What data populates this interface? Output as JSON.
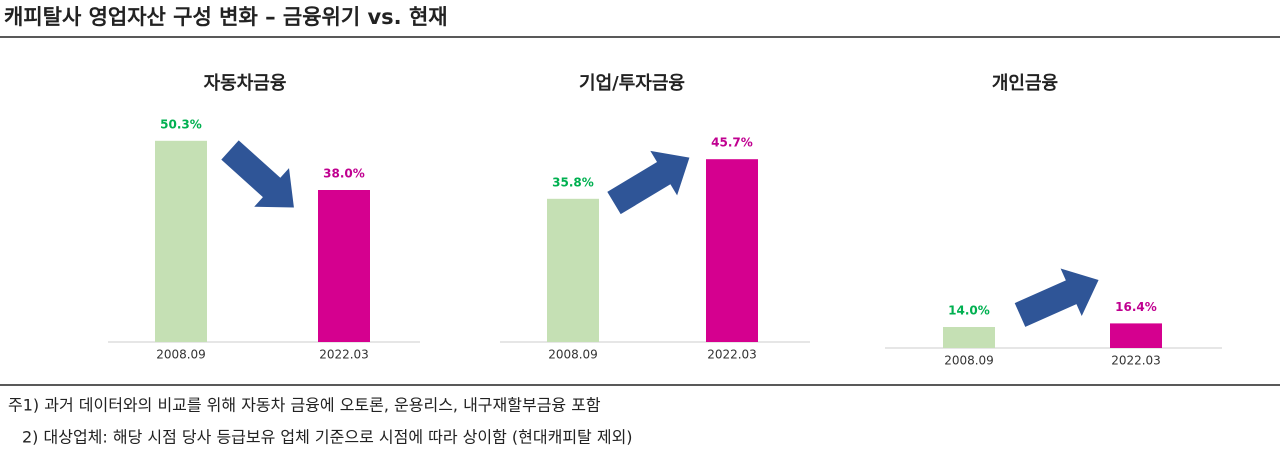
{
  "title": "캐피탈사 영업자산 구성 변화 – 금융위기 vs. 현재",
  "chart_data": [
    {
      "type": "bar",
      "title": "자동차금융",
      "categories": [
        "2008.09",
        "2022.03"
      ],
      "values": [
        50.3,
        38.0
      ],
      "value_labels": [
        "50.3%",
        "38.0%"
      ],
      "colors": [
        "#c5e0b4",
        "#d5008f"
      ],
      "label_colors": [
        "#00b050",
        "#c00090"
      ],
      "ylim": [
        0,
        60
      ]
    },
    {
      "type": "bar",
      "title": "기업/투자금융",
      "categories": [
        "2008.09",
        "2022.03"
      ],
      "values": [
        35.8,
        45.7
      ],
      "value_labels": [
        "35.8%",
        "45.7%"
      ],
      "colors": [
        "#c5e0b4",
        "#d5008f"
      ],
      "label_colors": [
        "#00b050",
        "#c00090"
      ],
      "ylim": [
        0,
        60
      ]
    },
    {
      "type": "bar",
      "title": "개인금융",
      "categories": [
        "2008.09",
        "2022.03"
      ],
      "values": [
        14.0,
        16.4
      ],
      "value_labels": [
        "14.0%",
        "16.4%"
      ],
      "colors": [
        "#c5e0b4",
        "#d5008f"
      ],
      "label_colors": [
        "#00b050",
        "#c00090"
      ],
      "ylim": [
        0,
        160
      ]
    }
  ],
  "notes": [
    "주1) 과거 데이터와의 비교를 위해 자동차 금융에 오토론, 운용리스, 내구재할부금융 포함",
    "2) 대상업체: 해당 시점 당사 등급보유 업체 기준으로 시점에 따라 상이함 (현대캐피탈 제외)"
  ]
}
